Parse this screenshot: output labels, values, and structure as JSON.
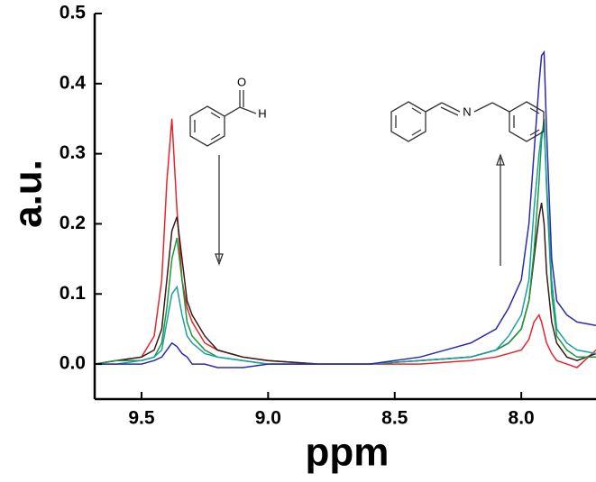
{
  "chart_data": {
    "type": "line",
    "xlabel": "ppm",
    "ylabel": "a.u.",
    "annotations": [
      "O",
      "H",
      "N"
    ],
    "xlim": [
      9.685,
      7.705
    ],
    "ylim": [
      -0.05,
      0.5
    ],
    "xticks": [
      9.5,
      {
        "value": 9,
        "label": "9.0"
      },
      8.5,
      {
        "value": 8,
        "label": "8.0"
      }
    ],
    "yticks": [
      {
        "value": 0,
        "label": "0.0"
      },
      0.1,
      0.2,
      0.3,
      0.4,
      0.5
    ],
    "x": [
      9.685,
      9.6,
      9.5,
      9.45,
      9.42,
      9.4,
      9.38,
      9.36,
      9.34,
      9.32,
      9.3,
      9.25,
      9.2,
      9.1,
      9.0,
      8.8,
      8.6,
      8.4,
      8.2,
      8.1,
      8.05,
      8.0,
      7.97,
      7.95,
      7.93,
      7.92,
      7.91,
      7.9,
      7.88,
      7.86,
      7.82,
      7.78,
      7.705
    ],
    "series": [
      {
        "color": "#e8242a",
        "values": [
          0.0,
          0.005,
          0.01,
          0.04,
          0.12,
          0.26,
          0.35,
          0.22,
          0.12,
          0.08,
          0.06,
          0.03,
          0.02,
          0.01,
          0.005,
          0.0,
          0.0,
          0.0,
          0.005,
          0.01,
          0.015,
          0.02,
          0.035,
          0.06,
          0.07,
          0.06,
          0.045,
          0.03,
          0.015,
          0.005,
          0.0,
          -0.005,
          0.02
        ]
      },
      {
        "color": "#3a1a1a",
        "values": [
          0.0,
          0.005,
          0.01,
          0.02,
          0.05,
          0.12,
          0.19,
          0.21,
          0.15,
          0.09,
          0.07,
          0.04,
          0.02,
          0.01,
          0.005,
          0.0,
          0.0,
          0.005,
          0.01,
          0.02,
          0.03,
          0.05,
          0.09,
          0.15,
          0.21,
          0.23,
          0.2,
          0.13,
          0.06,
          0.03,
          0.01,
          0.005,
          0.015
        ]
      },
      {
        "color": "#1a9a3a",
        "values": [
          0.0,
          0.005,
          0.005,
          0.01,
          0.03,
          0.08,
          0.15,
          0.18,
          0.12,
          0.06,
          0.04,
          0.02,
          0.01,
          0.005,
          0.0,
          0.0,
          0.0,
          0.005,
          0.01,
          0.02,
          0.03,
          0.05,
          0.09,
          0.16,
          0.26,
          0.32,
          0.35,
          0.25,
          0.1,
          0.04,
          0.02,
          0.01,
          0.01
        ]
      },
      {
        "color": "#1aa0a0",
        "values": [
          0.0,
          0.0,
          0.005,
          0.01,
          0.02,
          0.06,
          0.1,
          0.11,
          0.07,
          0.04,
          0.03,
          0.015,
          0.01,
          0.005,
          0.0,
          0.0,
          0.0,
          0.005,
          0.01,
          0.02,
          0.04,
          0.07,
          0.12,
          0.22,
          0.3,
          0.33,
          0.34,
          0.26,
          0.12,
          0.05,
          0.03,
          0.02,
          0.015
        ]
      },
      {
        "color": "#2a2aaa",
        "values": [
          0.0,
          0.0,
          0.0,
          0.005,
          0.01,
          0.02,
          0.03,
          0.025,
          0.015,
          0.01,
          0.0,
          0.0,
          -0.005,
          -0.005,
          0.0,
          0.0,
          0.0,
          0.01,
          0.03,
          0.05,
          0.08,
          0.12,
          0.2,
          0.3,
          0.4,
          0.44,
          0.445,
          0.33,
          0.15,
          0.09,
          0.07,
          0.06,
          0.055
        ]
      }
    ]
  }
}
